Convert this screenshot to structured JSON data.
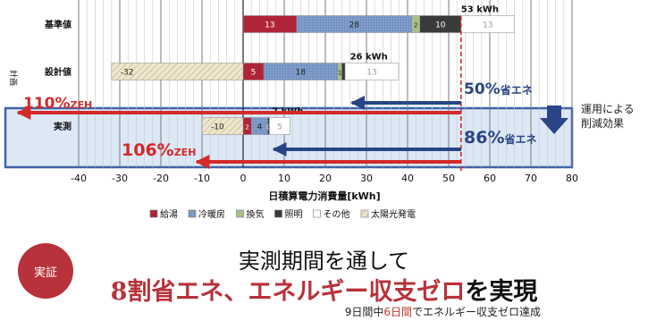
{
  "chart_data": {
    "type": "bar",
    "orientation": "horizontal",
    "stacked": true,
    "categories": [
      "基準値",
      "設計値",
      "実測"
    ],
    "y_group_label": "計画",
    "xlabel": "日積算電力消費量[kWh]",
    "xlim": [
      -40,
      80
    ],
    "x_ticks": [
      -40,
      -30,
      -20,
      -10,
      0,
      10,
      20,
      30,
      40,
      50,
      60,
      70,
      80
    ],
    "grid": true,
    "legend_position": "bottom",
    "series": [
      {
        "name": "給湯",
        "color": "#b0243a",
        "values": [
          13,
          5,
          2
        ],
        "labels": [
          "13",
          "5",
          "2"
        ]
      },
      {
        "name": "冷暖房",
        "color": "#7a98c6",
        "values": [
          28,
          18,
          4
        ],
        "labels": [
          "28",
          "18",
          "4"
        ]
      },
      {
        "name": "換気",
        "color": "#a9c08a",
        "values": [
          2,
          1,
          0
        ],
        "labels": [
          "2",
          "1",
          "0"
        ]
      },
      {
        "name": "照明",
        "color": "#3a3a3a",
        "values": [
          10,
          0.8,
          0.4
        ],
        "labels": [
          "10",
          "",
          "0"
        ]
      },
      {
        "name": "その他",
        "color": "#ffffff",
        "values": [
          13,
          13,
          5
        ],
        "labels": [
          "13",
          "13",
          "5"
        ]
      },
      {
        "name": "太陽光発電",
        "color": "#e7dcc0",
        "values": [
          0,
          -32,
          -10
        ],
        "labels": [
          "",
          "-32",
          "-10"
        ]
      }
    ],
    "totals": [
      {
        "category": "基準値",
        "value": 53,
        "label": "53 kWh"
      },
      {
        "category": "設計値",
        "value": 26,
        "label": "26 kWh"
      },
      {
        "category": "実測",
        "value": 7,
        "label": "7 kWh"
      }
    ],
    "annotations": {
      "design_savings": "50%",
      "design_savings_suffix": "省エネ",
      "actual_savings": "86%",
      "actual_savings_suffix": "省エネ",
      "design_zeh": "110%",
      "actual_zeh": "106%",
      "zeh_suffix": "ZEH",
      "operation_effect": [
        "運用による",
        "削減効果"
      ]
    }
  },
  "stamp": {
    "text": "実証"
  },
  "headline": {
    "line1": "実測期間を通して",
    "line2_red": "8割省エネ、エネルギー収支ゼロ",
    "line2_dark": "を実現"
  },
  "footnote": {
    "pre": "9日間中",
    "highlight": "6日間",
    "post": "でエネルギー収支ゼロ達成"
  },
  "colors": {
    "red": "#d42a2a",
    "navy": "#2a4585",
    "highlight_box": "#dce8f5",
    "highlight_border": "#3e62a8"
  }
}
